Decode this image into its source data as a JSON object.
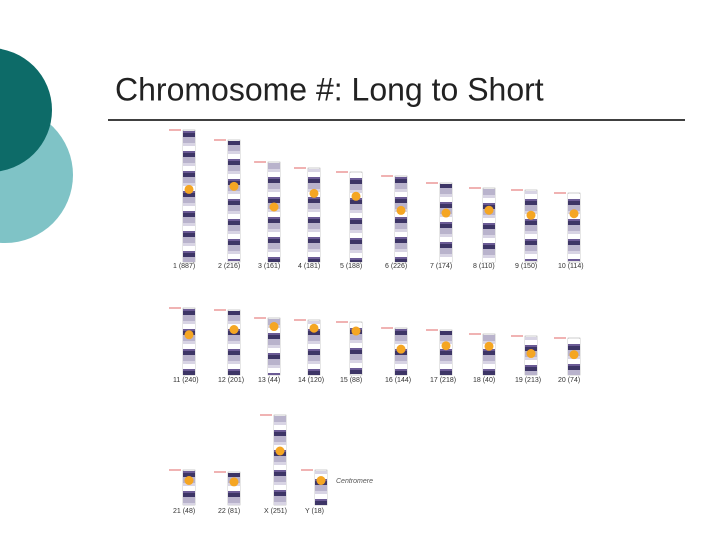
{
  "title": "Chromosome #: Long to Short",
  "chromosome_labels": [
    "1 (887)",
    "2 (216)",
    "3 (161)",
    "4 (181)",
    "5 (188)",
    "6 (226)",
    "7 (174)",
    "8 (110)",
    "9 (150)",
    "10 (114)",
    "11 (240)",
    "12 (201)",
    "13 (44)",
    "14 (120)",
    "15 (88)",
    "16 (144)",
    "17 (218)",
    "18 (40)",
    "19 (213)",
    "20 (74)",
    "21 (48)",
    "22 (81)",
    "X (251)",
    "Y (18)"
  ],
  "centromere_note": "Centromere"
}
